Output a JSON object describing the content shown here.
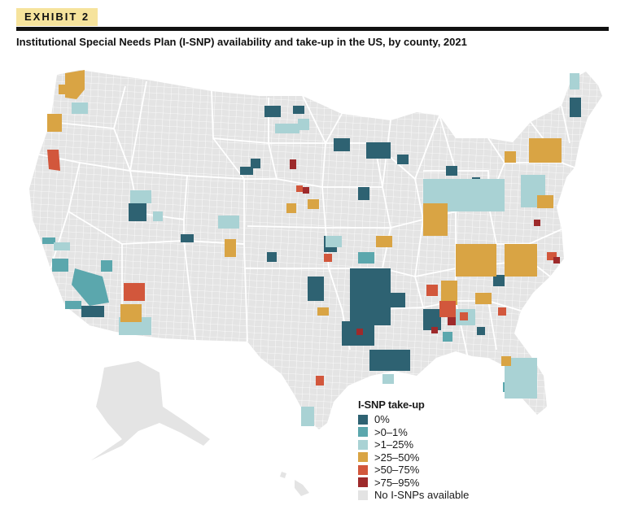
{
  "header": {
    "tag": "EXHIBIT 2",
    "title": "Institutional Special Needs Plan (I-SNP) availability and take-up in the US, by county, 2021"
  },
  "legend": {
    "title": "I-SNP take-up",
    "items": [
      {
        "label": "0%",
        "color": "#2e6272"
      },
      {
        "label": ">0–1%",
        "color": "#5ba7ad"
      },
      {
        "label": ">1–25%",
        "color": "#a9d2d4"
      },
      {
        "label": ">25–50%",
        "color": "#d9a444"
      },
      {
        "label": ">50–75%",
        "color": "#d2573c"
      },
      {
        "label": ">75–95%",
        "color": "#9e2a2b"
      },
      {
        "label": "No I-SNPs available",
        "color": "#e3e3e3"
      }
    ]
  },
  "map": {
    "land_color": "#e4e4e4",
    "border_color": "#ffffff"
  }
}
